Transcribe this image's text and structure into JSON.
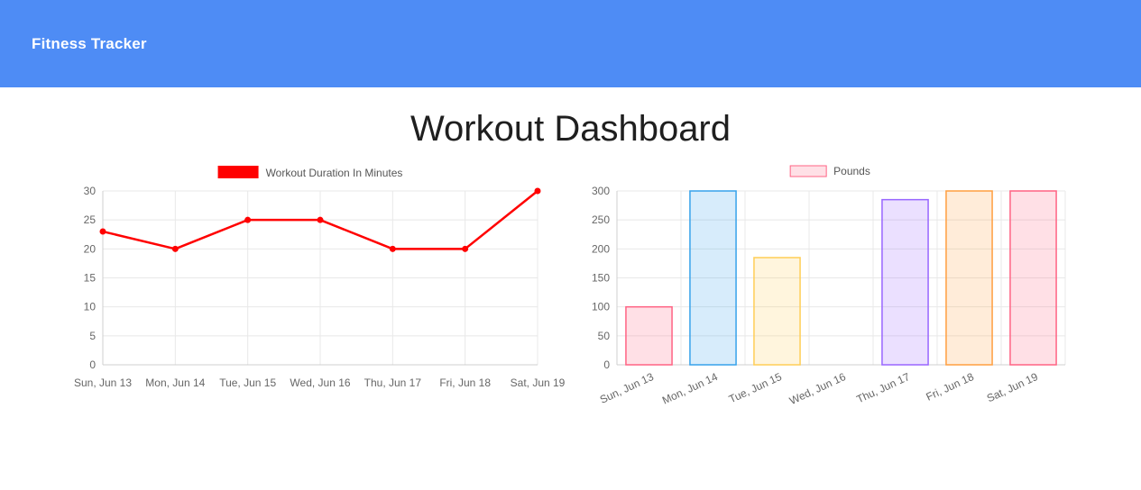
{
  "header": {
    "title": "Fitness Tracker",
    "background": "#4e8cf5"
  },
  "page": {
    "title": "Workout Dashboard"
  },
  "chart_data": [
    {
      "type": "line",
      "legend": "Workout Duration In Minutes",
      "categories": [
        "Sun, Jun 13",
        "Mon, Jun 14",
        "Tue, Jun 15",
        "Wed, Jun 16",
        "Thu, Jun 17",
        "Fri, Jun 18",
        "Sat, Jun 19"
      ],
      "values": [
        23,
        20,
        25,
        25,
        20,
        20,
        30
      ],
      "ylim": [
        0,
        30
      ],
      "yticks": [
        0,
        5,
        10,
        15,
        20,
        25,
        30
      ],
      "line_color": "#ff0000",
      "legend_swatch": {
        "fill": "#ff0000"
      },
      "grid": true,
      "legend_position": "top",
      "xlabel": "",
      "ylabel": ""
    },
    {
      "type": "bar",
      "legend": "Pounds",
      "categories": [
        "Sun, Jun 13",
        "Mon, Jun 14",
        "Tue, Jun 15",
        "Wed, Jun 16",
        "Thu, Jun 17",
        "Fri, Jun 18",
        "Sat, Jun 19"
      ],
      "values": [
        100,
        300,
        185,
        0,
        285,
        300,
        300
      ],
      "ylim": [
        0,
        300
      ],
      "yticks": [
        0,
        50,
        100,
        150,
        200,
        250,
        300
      ],
      "colors": [
        {
          "fill": "rgba(255,99,132,0.2)",
          "border": "rgba(255,99,132,1)"
        },
        {
          "fill": "rgba(54,162,235,0.2)",
          "border": "rgba(54,162,235,1)"
        },
        {
          "fill": "rgba(255,206,86,0.2)",
          "border": "rgba(255,206,86,1)"
        },
        {
          "fill": "rgba(75,192,192,0.2)",
          "border": "rgba(75,192,192,1)"
        },
        {
          "fill": "rgba(153,102,255,0.2)",
          "border": "rgba(153,102,255,1)"
        },
        {
          "fill": "rgba(255,159,64,0.2)",
          "border": "rgba(255,159,64,1)"
        },
        {
          "fill": "rgba(255,99,132,0.2)",
          "border": "rgba(255,99,132,1)"
        }
      ],
      "legend_swatch": {
        "fill": "rgba(255,99,132,0.2)",
        "border": "rgba(255,99,132,1)"
      },
      "x_label_rotation": -25,
      "grid": true,
      "legend_position": "top",
      "xlabel": "",
      "ylabel": ""
    }
  ]
}
